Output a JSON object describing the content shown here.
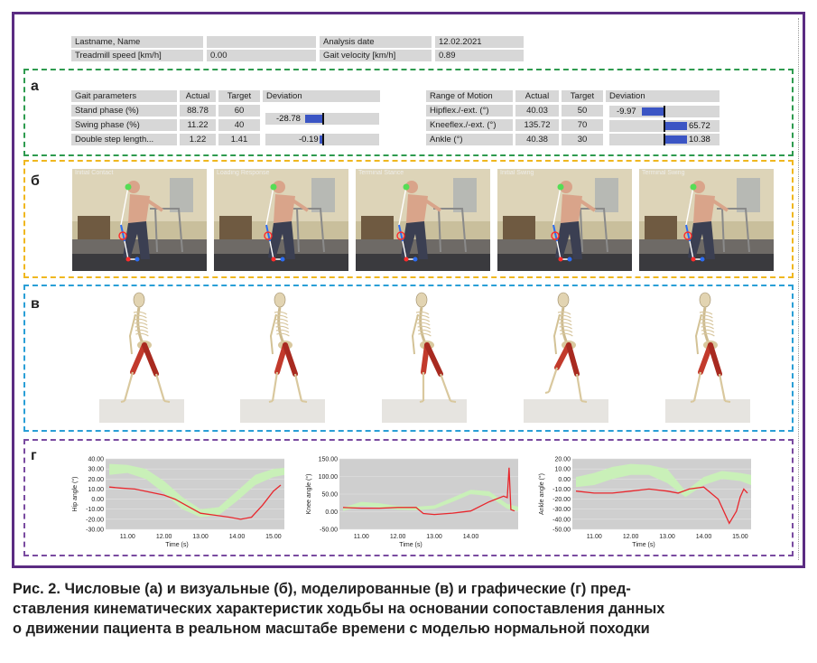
{
  "header": {
    "name_label": "Lastname, Name",
    "name_value": "",
    "date_label": "Analysis date",
    "date_value": "12.02.2021",
    "treadmill_label": "Treadmill speed [km/h]",
    "treadmill_value": "0.00",
    "velocity_label": "Gait velocity [km/h]",
    "velocity_value": "0.89"
  },
  "section_a": {
    "label": "а",
    "gait": {
      "headers": [
        "Gait parameters",
        "Actual",
        "Target",
        "Deviation"
      ],
      "rows": [
        {
          "name": "Stand phase (%)",
          "actual": "88.78",
          "target": "60",
          "deviation": "",
          "deviation_value": null
        },
        {
          "name": "Swing phase (%)",
          "actual": "11.22",
          "target": "40",
          "deviation": "-28.78",
          "deviation_value": -28.78
        },
        {
          "name": "Double step length...",
          "actual": "1.22",
          "target": "1.41",
          "deviation": "-0.19",
          "deviation_value": -0.19
        }
      ]
    },
    "rom": {
      "headers": [
        "Range of Motion",
        "Actual",
        "Target",
        "Deviation"
      ],
      "rows": [
        {
          "name": "Hipflex./-ext. (°)",
          "actual": "40.03",
          "target": "50",
          "deviation": "-9.97",
          "deviation_value": -9.97
        },
        {
          "name": "Kneeflex./-ext. (°)",
          "actual": "135.72",
          "target": "70",
          "deviation": "65.72",
          "deviation_value": 65.72
        },
        {
          "name": "Ankle (°)",
          "actual": "40.38",
          "target": "30",
          "deviation": "10.38",
          "deviation_value": 10.38
        }
      ]
    }
  },
  "section_b": {
    "label": "б",
    "phases": [
      "Initial Contact",
      "Loading Response",
      "Terminal Stance",
      "Initial Swing",
      "Terminal Swing"
    ]
  },
  "section_v": {
    "label": "в"
  },
  "section_g": {
    "label": "г"
  },
  "chart_data": [
    {
      "type": "line",
      "ylabel": "Hip angle (°)",
      "xlabel": "Time (s)",
      "xlim": [
        10.4,
        15.3
      ],
      "ylim": [
        -30,
        40
      ],
      "xticks": [
        "11.00",
        "12.00",
        "13.00",
        "14.00",
        "15.00"
      ],
      "yticks": [
        "40.00",
        "30.00",
        "20.00",
        "10.00",
        "0.00",
        "-10.00",
        "-20.00",
        "-30.00"
      ],
      "norm_band": {
        "x": [
          10.5,
          11.0,
          11.5,
          12.0,
          12.5,
          13.0,
          13.5,
          14.0,
          14.5,
          15.0,
          15.3
        ],
        "upper": [
          35,
          34,
          30,
          18,
          2,
          -10,
          -8,
          8,
          24,
          30,
          31
        ],
        "lower": [
          24,
          26,
          20,
          6,
          -10,
          -18,
          -16,
          -2,
          14,
          22,
          24
        ]
      },
      "patient": {
        "x": [
          10.5,
          10.8,
          11.2,
          11.6,
          12.0,
          12.3,
          12.6,
          13.0,
          13.4,
          13.8,
          14.1,
          14.4,
          14.7,
          15.0,
          15.2
        ],
        "y": [
          12,
          11,
          10,
          7,
          4,
          0,
          -6,
          -14,
          -16,
          -18,
          -20,
          -18,
          -6,
          8,
          14
        ]
      }
    },
    {
      "type": "line",
      "ylabel": "Knee angle (°)",
      "xlabel": "Time (s)",
      "xlim": [
        10.4,
        15.3
      ],
      "ylim": [
        -50,
        150
      ],
      "xticks": [
        "11.00",
        "12.00",
        "13.00",
        "14.00"
      ],
      "yticks": [
        "150.00",
        "100.00",
        "50.00",
        "0.00",
        "-50.00"
      ],
      "norm_band": {
        "x": [
          10.5,
          11.0,
          11.5,
          12.0,
          12.5,
          13.0,
          13.5,
          14.0,
          14.5,
          15.0,
          15.3
        ],
        "upper": [
          12,
          28,
          24,
          16,
          14,
          18,
          40,
          62,
          58,
          22,
          14
        ],
        "lower": [
          2,
          16,
          12,
          6,
          4,
          8,
          28,
          50,
          44,
          8,
          2
        ]
      },
      "patient": {
        "x": [
          10.5,
          11.0,
          11.5,
          12.0,
          12.5,
          12.7,
          13.0,
          13.5,
          14.0,
          14.5,
          14.9,
          15.0,
          15.05,
          15.1,
          15.2
        ],
        "y": [
          12,
          10,
          10,
          12,
          12,
          -5,
          -8,
          -4,
          2,
          28,
          44,
          40,
          125,
          6,
          2
        ]
      }
    },
    {
      "type": "line",
      "ylabel": "Ankle angle (°)",
      "xlabel": "Time (s)",
      "xlim": [
        10.4,
        15.3
      ],
      "ylim": [
        -50,
        20
      ],
      "xticks": [
        "11.00",
        "12.00",
        "13.00",
        "14.00",
        "15.00"
      ],
      "yticks": [
        "20.00",
        "10.00",
        "0.00",
        "-10.00",
        "-20.00",
        "-30.00",
        "-40.00",
        "-50.00"
      ],
      "norm_band": {
        "x": [
          10.5,
          11.0,
          11.5,
          12.0,
          12.5,
          13.0,
          13.5,
          14.0,
          14.5,
          15.0,
          15.3
        ],
        "upper": [
          2,
          6,
          12,
          15,
          14,
          10,
          -12,
          2,
          8,
          6,
          4
        ],
        "lower": [
          -8,
          -6,
          0,
          4,
          4,
          -4,
          -18,
          -6,
          0,
          -2,
          -6
        ]
      },
      "patient": {
        "x": [
          10.5,
          11.0,
          11.5,
          12.0,
          12.5,
          13.0,
          13.3,
          13.6,
          14.0,
          14.4,
          14.7,
          14.9,
          15.0,
          15.1,
          15.2
        ],
        "y": [
          -12,
          -14,
          -14,
          -12,
          -10,
          -12,
          -14,
          -10,
          -8,
          -20,
          -44,
          -32,
          -18,
          -10,
          -14
        ]
      }
    }
  ],
  "caption": {
    "line1": "Рис. 2. Числовые (а) и визуальные (б), моделированные (в) и графические (г) пред-",
    "line2": "ставления кинематических характеристик ходьбы на основании сопоставления данных",
    "line3": "о движении пациента в реальном масштабе времени с моделью нормальной походки"
  },
  "colors": {
    "frame": "#5b2c82",
    "section_a": "#2e9b4f",
    "section_b": "#f0b71f",
    "section_v": "#2a9fd6",
    "section_g": "#7a4ba0",
    "deviation_bar": "#3b55c4",
    "norm_band": "#c9f0b8",
    "patient_line": "#e8272d"
  }
}
